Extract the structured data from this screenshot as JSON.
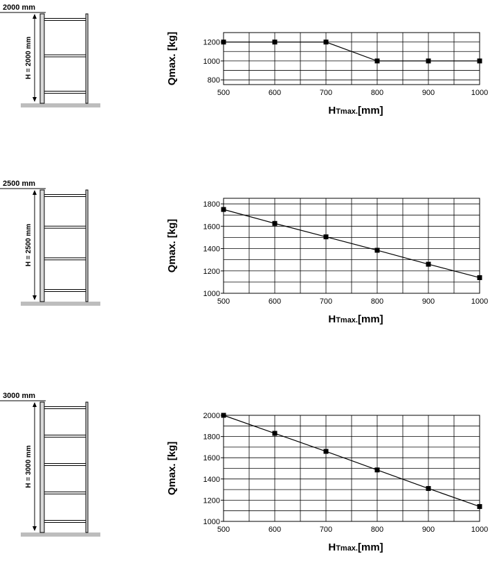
{
  "colors": {
    "line": "#000000",
    "grid": "#000000",
    "floor": "#bdbdbd",
    "upright": "#d9d9d9"
  },
  "panels": [
    {
      "rack": {
        "top_label": "2000 mm",
        "height_label": "H = 2000 mm",
        "levels": 3
      },
      "chart_data": {
        "type": "line",
        "xlabel_main": "H",
        "xlabel_sub": "Tmax.",
        "xlabel_tail": "[mm]",
        "ylabel": "Qmax. [kg]",
        "x": [
          500,
          600,
          700,
          800,
          900,
          1000
        ],
        "xticks": [
          "500",
          "600",
          "700",
          "800",
          "900",
          "1000"
        ],
        "yticks": [
          800,
          1000,
          1200
        ],
        "ylim": [
          750,
          1300
        ],
        "ygrid": [
          800,
          900,
          1000,
          1100,
          1200,
          1300
        ],
        "series": [
          {
            "values": [
              1200,
              1200,
              1200,
              1000,
              1000,
              1000
            ]
          }
        ],
        "grid": true,
        "marker": "square"
      }
    },
    {
      "rack": {
        "top_label": "2500 mm",
        "height_label": "H = 2500 mm",
        "levels": 4
      },
      "chart_data": {
        "type": "line",
        "xlabel_main": "H",
        "xlabel_sub": "Tmax.",
        "xlabel_tail": "[mm]",
        "ylabel": "Qmax. [kg]",
        "x": [
          500,
          600,
          700,
          800,
          900,
          1000
        ],
        "xticks": [
          "500",
          "600",
          "700",
          "800",
          "900",
          "1000"
        ],
        "yticks": [
          1000,
          1200,
          1400,
          1600,
          1800
        ],
        "ylim": [
          1000,
          1850
        ],
        "ygrid": [
          1000,
          1100,
          1200,
          1300,
          1400,
          1500,
          1600,
          1700,
          1800
        ],
        "series": [
          {
            "values": [
              1750,
              1625,
              1505,
              1385,
              1260,
              1140
            ]
          }
        ],
        "grid": true,
        "marker": "square"
      }
    },
    {
      "rack": {
        "top_label": "3000 mm",
        "height_label": "H = 3000 mm",
        "levels": 5
      },
      "chart_data": {
        "type": "line",
        "xlabel_main": "H",
        "xlabel_sub": "Tmax.",
        "xlabel_tail": "[mm]",
        "ylabel": "Qmax. [kg]",
        "x": [
          500,
          600,
          700,
          800,
          900,
          1000
        ],
        "xticks": [
          "500",
          "600",
          "700",
          "800",
          "900",
          "1000"
        ],
        "yticks": [
          1000,
          1200,
          1400,
          1600,
          1800,
          2000
        ],
        "ylim": [
          1000,
          2000
        ],
        "ygrid": [
          1000,
          1100,
          1200,
          1300,
          1400,
          1500,
          1600,
          1700,
          1800,
          1900,
          2000
        ],
        "series": [
          {
            "values": [
              2000,
              1830,
              1660,
              1485,
              1310,
              1140
            ]
          }
        ],
        "grid": true,
        "marker": "square"
      }
    }
  ]
}
